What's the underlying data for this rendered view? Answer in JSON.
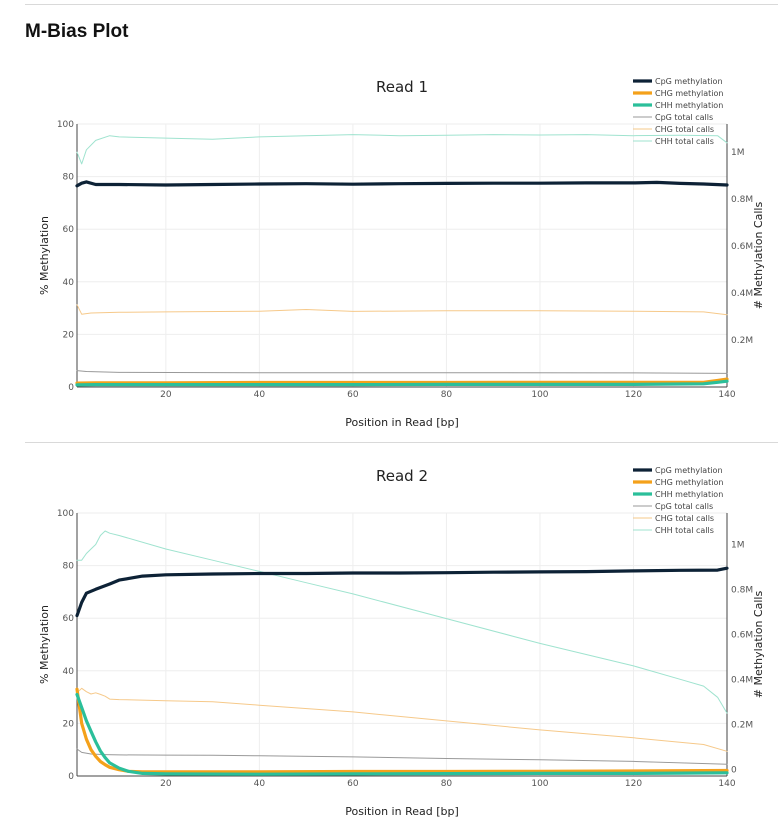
{
  "page": {
    "title": "M-Bias Plot"
  },
  "colors": {
    "cpg": "#0d2236",
    "chg": "#f4a11a",
    "chh": "#2bbf9a",
    "cpg_calls": "#999999",
    "chg_calls": "#f6c98a",
    "chh_calls": "#9fe3cf"
  },
  "chart_data": [
    {
      "type": "line",
      "title": "Read 1",
      "xlabel": "Position in Read [bp]",
      "ylabel": "% Methylation",
      "y2label": "# Methylation Calls",
      "xlim": [
        1,
        140
      ],
      "ylim": [
        0,
        100
      ],
      "y2lim": [
        0,
        1120000
      ],
      "xticks": [
        20,
        40,
        60,
        80,
        100,
        120,
        140
      ],
      "yticks": [
        0,
        20,
        40,
        60,
        80,
        100
      ],
      "y2ticks": [
        200000,
        400000,
        600000,
        800000,
        1000000
      ],
      "y2ticklabels": [
        "0.2M",
        "0.4M",
        "0.6M",
        "0.8M",
        "1M"
      ],
      "legend_position": "top-right",
      "legend": [
        "CpG methylation",
        "CHG methylation",
        "CHH methylation",
        "CpG total calls",
        "CHG total calls",
        "CHH total calls"
      ],
      "series": [
        {
          "name": "CpG methylation",
          "axis": "y",
          "x": [
            1,
            2,
            3,
            5,
            10,
            20,
            30,
            40,
            50,
            60,
            70,
            80,
            90,
            100,
            110,
            120,
            125,
            130,
            135,
            140
          ],
          "values": [
            76.5,
            77.5,
            78,
            77,
            77,
            76.8,
            77,
            77.2,
            77.3,
            77.1,
            77.3,
            77.4,
            77.5,
            77.5,
            77.6,
            77.6,
            77.8,
            77.4,
            77.2,
            76.8
          ]
        },
        {
          "name": "CHG methylation",
          "axis": "y",
          "x": [
            1,
            5,
            20,
            40,
            60,
            80,
            100,
            120,
            135,
            138,
            140
          ],
          "values": [
            1.5,
            1.6,
            1.6,
            1.7,
            1.7,
            1.7,
            1.8,
            1.8,
            1.8,
            2.5,
            3
          ]
        },
        {
          "name": "CHH methylation",
          "axis": "y",
          "x": [
            1,
            5,
            20,
            40,
            60,
            80,
            100,
            120,
            135,
            138,
            140
          ],
          "values": [
            0.8,
            0.9,
            0.9,
            0.9,
            0.9,
            1,
            1,
            1,
            1.2,
            1.8,
            2.2
          ]
        },
        {
          "name": "CpG total calls",
          "axis": "y2",
          "x": [
            1,
            3,
            10,
            40,
            80,
            120,
            140
          ],
          "values": [
            70000,
            66000,
            62000,
            61000,
            61000,
            60000,
            58000
          ]
        },
        {
          "name": "CHG total calls",
          "axis": "y2",
          "x": [
            1,
            2,
            4,
            10,
            20,
            40,
            50,
            60,
            80,
            100,
            120,
            135,
            140
          ],
          "values": [
            350000,
            310000,
            315000,
            318000,
            320000,
            323000,
            330000,
            322000,
            325000,
            325000,
            323000,
            320000,
            308000
          ]
        },
        {
          "name": "CHH total calls",
          "axis": "y2",
          "x": [
            1,
            2,
            3,
            5,
            8,
            10,
            20,
            30,
            40,
            50,
            60,
            70,
            80,
            90,
            100,
            110,
            120,
            130,
            138,
            140
          ],
          "values": [
            1000000,
            950000,
            1010000,
            1050000,
            1070000,
            1065000,
            1060000,
            1055000,
            1065000,
            1070000,
            1075000,
            1070000,
            1072000,
            1075000,
            1073000,
            1075000,
            1070000,
            1072000,
            1070000,
            1040000
          ]
        }
      ]
    },
    {
      "type": "line",
      "title": "Read 2",
      "xlabel": "Position in Read [bp]",
      "ylabel": "% Methylation",
      "y2label": "# Methylation Calls",
      "xlim": [
        1,
        140
      ],
      "ylim": [
        0,
        100
      ],
      "y2lim": [
        -30000,
        1140000
      ],
      "xticks": [
        20,
        40,
        60,
        80,
        100,
        120,
        140
      ],
      "yticks": [
        0,
        20,
        40,
        60,
        80,
        100
      ],
      "y2ticks": [
        0,
        200000,
        400000,
        600000,
        800000,
        1000000
      ],
      "y2ticklabels": [
        "0",
        "0.2M",
        "0.4M",
        "0.6M",
        "0.8M",
        "1M"
      ],
      "legend_position": "top-right",
      "legend": [
        "CpG methylation",
        "CHG methylation",
        "CHH methylation",
        "CpG total calls",
        "CHG total calls",
        "CHH total calls"
      ],
      "series": [
        {
          "name": "CpG methylation",
          "axis": "y",
          "x": [
            1,
            2,
            3,
            5,
            8,
            10,
            15,
            20,
            30,
            40,
            50,
            60,
            70,
            80,
            90,
            100,
            110,
            120,
            130,
            138,
            140
          ],
          "values": [
            61,
            66,
            69.5,
            71,
            73,
            74.5,
            76,
            76.5,
            76.8,
            77,
            77,
            77.2,
            77.2,
            77.3,
            77.5,
            77.6,
            77.7,
            78,
            78.2,
            78.3,
            79
          ]
        },
        {
          "name": "CHG methylation",
          "axis": "y",
          "x": [
            1,
            2,
            3,
            4,
            5,
            6,
            7,
            8,
            10,
            12,
            15,
            20,
            40,
            60,
            80,
            100,
            120,
            130,
            140
          ],
          "values": [
            33,
            20,
            14,
            10,
            7.5,
            5.5,
            4.3,
            3.3,
            2.4,
            1.8,
            1.6,
            1.6,
            1.6,
            1.7,
            1.7,
            1.8,
            1.9,
            2,
            2.1
          ]
        },
        {
          "name": "CHH methylation",
          "axis": "y",
          "x": [
            1,
            2,
            3,
            4,
            5,
            6,
            7,
            8,
            10,
            12,
            15,
            20,
            40,
            60,
            80,
            100,
            120,
            130,
            140
          ],
          "values": [
            31,
            26,
            21,
            17,
            13,
            9.5,
            7,
            5,
            3,
            1.8,
            1,
            0.8,
            0.7,
            0.8,
            0.9,
            1,
            1,
            1.1,
            1.2
          ]
        },
        {
          "name": "CpG total calls",
          "axis": "y2",
          "x": [
            1,
            2,
            4,
            7,
            10,
            20,
            30,
            40,
            60,
            80,
            100,
            120,
            140
          ],
          "values": [
            90000,
            75000,
            68000,
            65000,
            64000,
            63000,
            62000,
            60000,
            55000,
            48000,
            42000,
            35000,
            22000
          ]
        },
        {
          "name": "CHG total calls",
          "axis": "y2",
          "x": [
            1,
            2,
            3,
            4,
            5,
            6,
            7,
            8,
            10,
            20,
            30,
            40,
            60,
            80,
            100,
            120,
            135,
            140
          ],
          "values": [
            340000,
            360000,
            345000,
            335000,
            340000,
            333000,
            325000,
            312000,
            310000,
            305000,
            300000,
            285000,
            255000,
            215000,
            175000,
            140000,
            110000,
            80000
          ]
        },
        {
          "name": "CHH total calls",
          "axis": "y2",
          "x": [
            1,
            2,
            3,
            4,
            5,
            6,
            7,
            8,
            10,
            20,
            30,
            40,
            50,
            60,
            80,
            100,
            120,
            130,
            135,
            138,
            140
          ],
          "values": [
            930000,
            930000,
            960000,
            980000,
            1000000,
            1040000,
            1060000,
            1050000,
            1040000,
            980000,
            930000,
            880000,
            830000,
            780000,
            670000,
            560000,
            460000,
            400000,
            370000,
            320000,
            250000
          ]
        }
      ]
    }
  ]
}
